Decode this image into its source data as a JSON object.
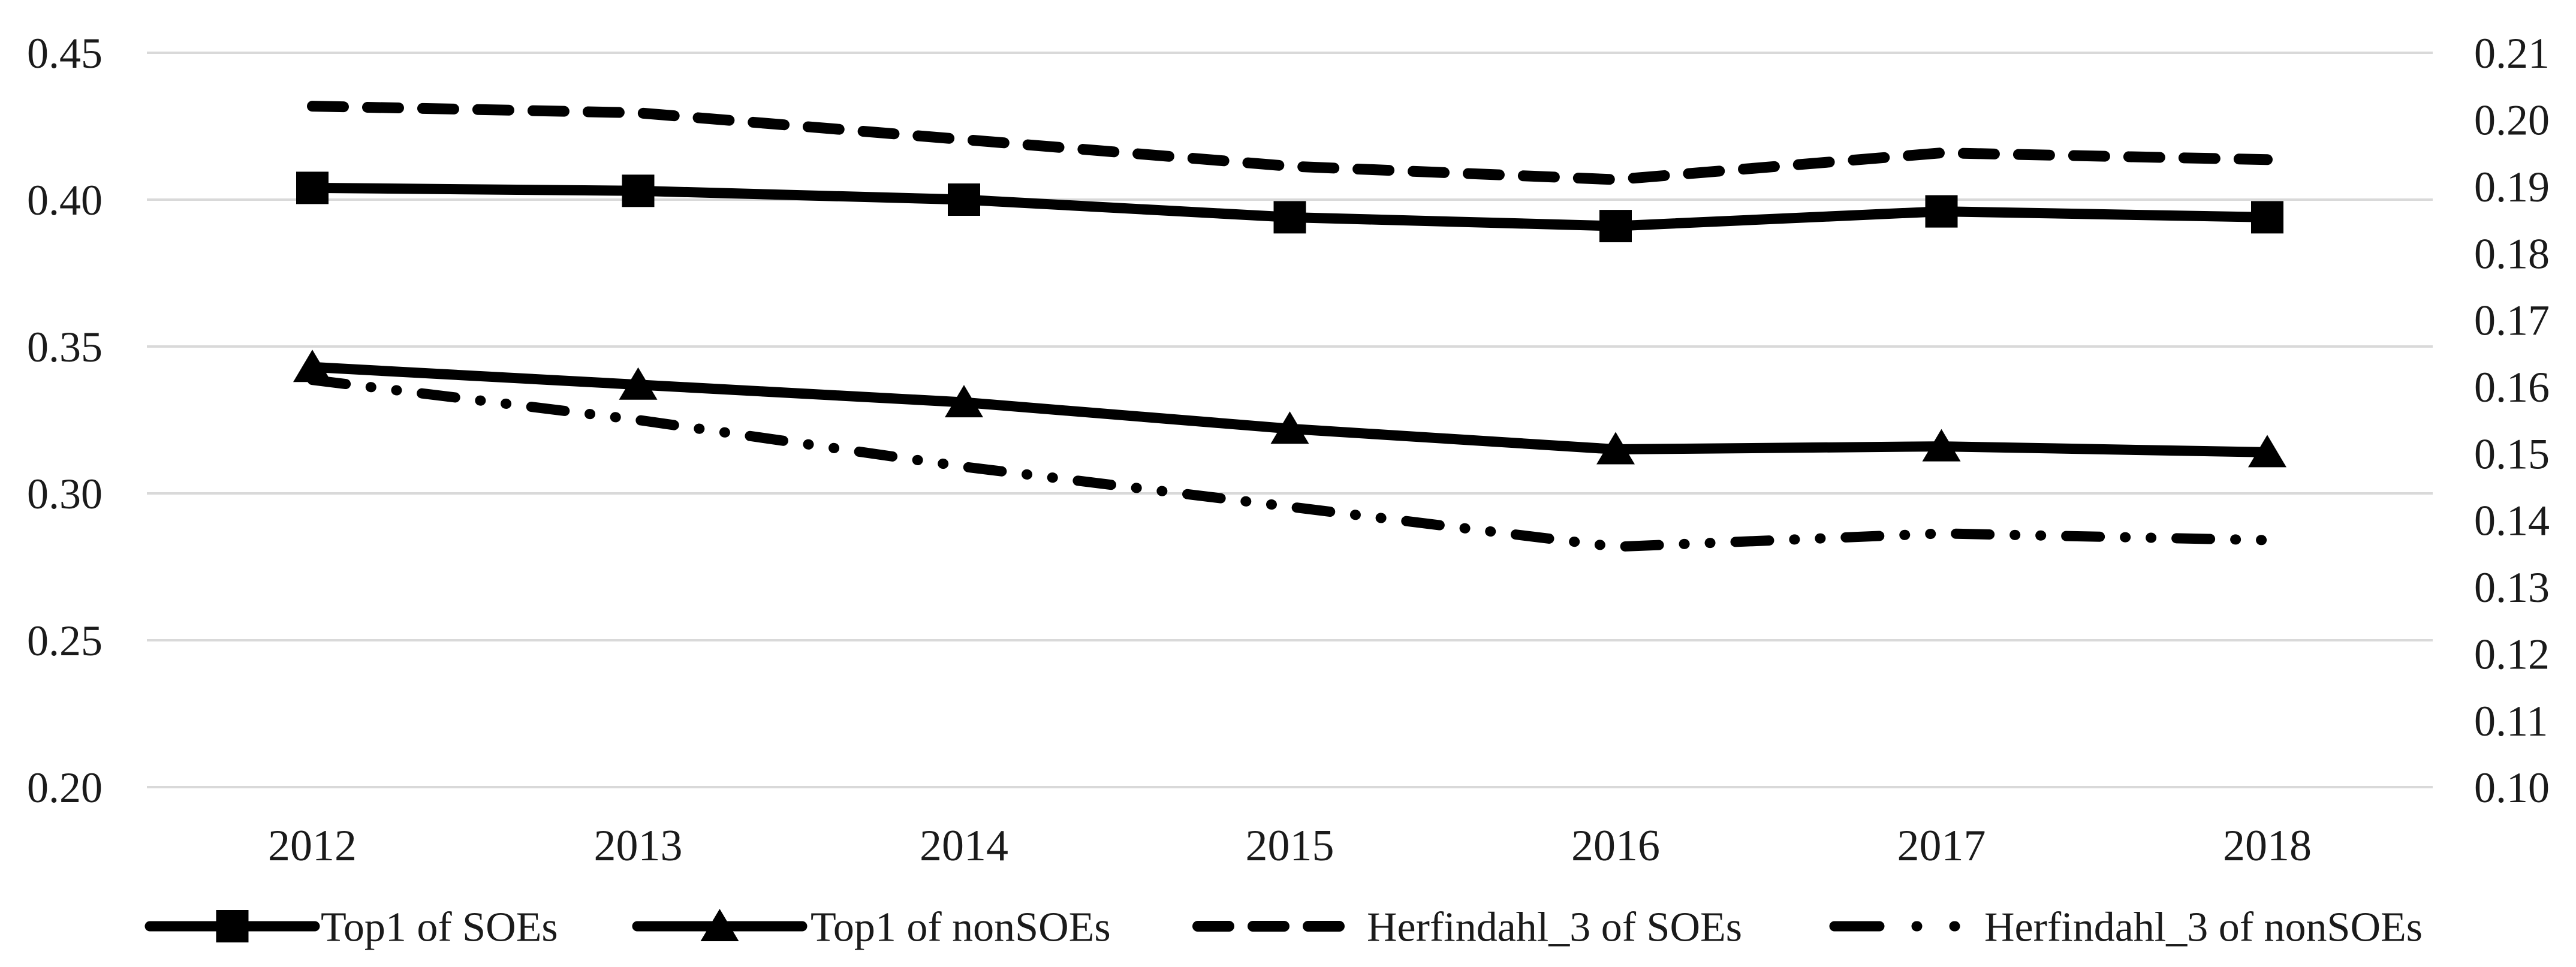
{
  "chart_data": {
    "type": "line",
    "title": "",
    "xlabel": "",
    "ylabel_left": "",
    "ylabel_right": "",
    "categories": [
      "2012",
      "2013",
      "2014",
      "2015",
      "2016",
      "2017",
      "2018"
    ],
    "left_axis": {
      "min": 0.2,
      "max": 0.45,
      "ticks": [
        "0.45",
        "0.40",
        "0.35",
        "0.30",
        "0.25",
        "0.20"
      ]
    },
    "right_axis": {
      "min": 0.1,
      "max": 0.21,
      "ticks": [
        "0.21",
        "0.20",
        "0.19",
        "0.18",
        "0.17",
        "0.16",
        "0.15",
        "0.14",
        "0.13",
        "0.12",
        "0.11",
        "0.10"
      ]
    },
    "grid": true,
    "legend_position": "bottom",
    "series": [
      {
        "name": "Top1 of SOEs",
        "axis": "left",
        "line_style": "solid",
        "marker": "square",
        "color": "#000000",
        "values": [
          0.404,
          0.403,
          0.4,
          0.394,
          0.391,
          0.396,
          0.394
        ]
      },
      {
        "name": "Top1 of nonSOEs",
        "axis": "left",
        "line_style": "solid",
        "marker": "triangle",
        "color": "#000000",
        "values": [
          0.343,
          0.337,
          0.331,
          0.322,
          0.315,
          0.316,
          0.314
        ]
      },
      {
        "name": "Herfindahl_3 of SOEs",
        "axis": "right",
        "line_style": "dashed",
        "marker": "none",
        "color": "#000000",
        "values": [
          0.202,
          0.201,
          0.197,
          0.193,
          0.191,
          0.195,
          0.194
        ]
      },
      {
        "name": "Herfindahl_3 of nonSOEs",
        "axis": "right",
        "line_style": "dash-dot-dot",
        "marker": "none",
        "color": "#000000",
        "values": [
          0.161,
          0.155,
          0.148,
          0.142,
          0.136,
          0.138,
          0.137
        ]
      }
    ],
    "colors": {
      "line": "#000000",
      "grid": "#d9d9d9",
      "text": "#1a1a1a",
      "background": "#ffffff"
    }
  }
}
